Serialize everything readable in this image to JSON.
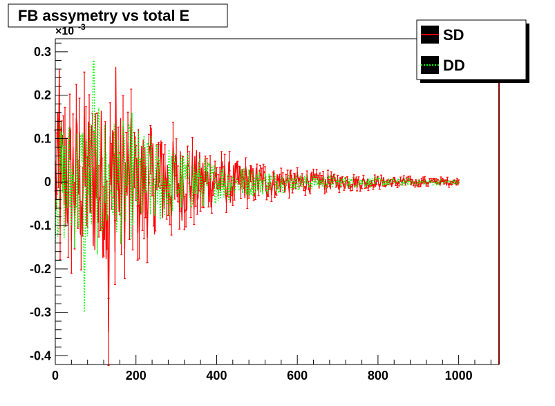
{
  "colors": {
    "background": "#ffffff",
    "frame": "#000000",
    "right_edge": "#7a0000",
    "sd_line": "#ff0000",
    "dd_line": "#00ff00",
    "legend_swatch": "#000000"
  },
  "chart_data": {
    "type": "line",
    "title": "FB assymetry vs total E",
    "xlabel": "",
    "ylabel": "",
    "y_exponent_base": "×10",
    "y_exponent_power": "-3",
    "xlim": [
      0,
      1100
    ],
    "ylim": [
      -0.42,
      0.33
    ],
    "x_ticks": [
      0,
      200,
      400,
      600,
      800,
      1000
    ],
    "x_tick_labels": [
      "0",
      "200",
      "400",
      "600",
      "800",
      "1000"
    ],
    "y_ticks": [
      -0.4,
      -0.3,
      -0.2,
      -0.1,
      0,
      0.1,
      0.2,
      0.3
    ],
    "y_tick_labels": [
      "-0.4",
      "-0.3",
      "-0.2",
      "-0.1",
      "0",
      "0.1",
      "0.2",
      "0.3"
    ],
    "grid": false,
    "legend_position": "top-right",
    "data_x_range": [
      0,
      1000
    ],
    "series": [
      {
        "name": "SD",
        "color": "#ff0000",
        "style": "solid with error bars",
        "envelope": [
          {
            "x": 0,
            "amp": 0.2
          },
          {
            "x": 100,
            "amp": 0.24
          },
          {
            "x": 200,
            "amp": 0.18
          },
          {
            "x": 300,
            "amp": 0.12
          },
          {
            "x": 400,
            "amp": 0.07
          },
          {
            "x": 500,
            "amp": 0.05
          },
          {
            "x": 600,
            "amp": 0.03
          },
          {
            "x": 700,
            "amp": 0.022
          },
          {
            "x": 800,
            "amp": 0.016
          },
          {
            "x": 900,
            "amp": 0.012
          },
          {
            "x": 1000,
            "amp": 0.01
          }
        ],
        "extremes": [
          {
            "x": 10,
            "y": 0.26
          },
          {
            "x": 132,
            "y": -0.345
          },
          {
            "x": 150,
            "y": 0.265
          }
        ]
      },
      {
        "name": "DD",
        "color": "#00ff00",
        "style": "dotted",
        "envelope": [
          {
            "x": 0,
            "amp": 0.18
          },
          {
            "x": 100,
            "amp": 0.22
          },
          {
            "x": 200,
            "amp": 0.16
          },
          {
            "x": 300,
            "amp": 0.1
          },
          {
            "x": 400,
            "amp": 0.06
          },
          {
            "x": 500,
            "amp": 0.04
          },
          {
            "x": 600,
            "amp": 0.025
          },
          {
            "x": 700,
            "amp": 0.018
          },
          {
            "x": 800,
            "amp": 0.013
          },
          {
            "x": 900,
            "amp": 0.01
          },
          {
            "x": 1000,
            "amp": 0.008
          }
        ],
        "extremes": [
          {
            "x": 95,
            "y": 0.28
          },
          {
            "x": 72,
            "y": -0.3
          },
          {
            "x": 190,
            "y": 0.16
          }
        ]
      }
    ]
  }
}
